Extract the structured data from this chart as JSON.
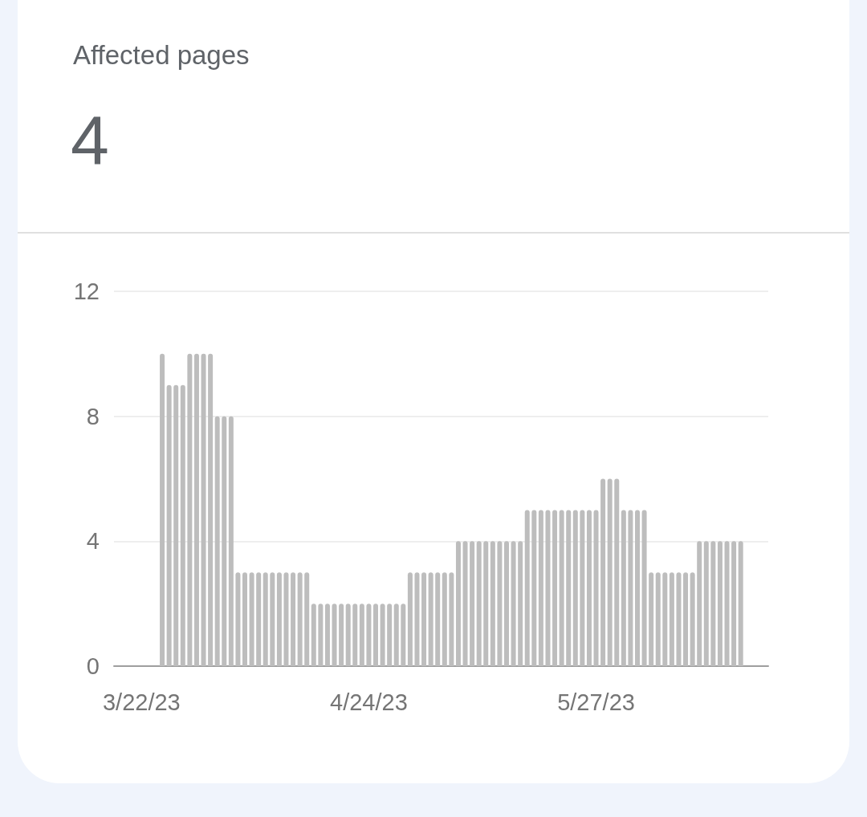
{
  "chart_data": {
    "type": "bar",
    "title": "Affected pages",
    "subtitle": "4",
    "x": [
      "2023-03-25",
      "2023-03-26",
      "2023-03-27",
      "2023-03-28",
      "2023-03-29",
      "2023-03-30",
      "2023-03-31",
      "2023-04-01",
      "2023-04-02",
      "2023-04-03",
      "2023-04-04",
      "2023-04-05",
      "2023-04-06",
      "2023-04-07",
      "2023-04-08",
      "2023-04-09",
      "2023-04-10",
      "2023-04-11",
      "2023-04-12",
      "2023-04-13",
      "2023-04-14",
      "2023-04-15",
      "2023-04-16",
      "2023-04-17",
      "2023-04-18",
      "2023-04-19",
      "2023-04-20",
      "2023-04-21",
      "2023-04-22",
      "2023-04-23",
      "2023-04-24",
      "2023-04-25",
      "2023-04-26",
      "2023-04-27",
      "2023-04-28",
      "2023-04-29",
      "2023-04-30",
      "2023-05-01",
      "2023-05-02",
      "2023-05-03",
      "2023-05-04",
      "2023-05-05",
      "2023-05-06",
      "2023-05-07",
      "2023-05-08",
      "2023-05-09",
      "2023-05-10",
      "2023-05-11",
      "2023-05-12",
      "2023-05-13",
      "2023-05-14",
      "2023-05-15",
      "2023-05-16",
      "2023-05-17",
      "2023-05-18",
      "2023-05-19",
      "2023-05-20",
      "2023-05-21",
      "2023-05-22",
      "2023-05-23",
      "2023-05-24",
      "2023-05-25",
      "2023-05-26",
      "2023-05-27",
      "2023-05-28",
      "2023-05-29",
      "2023-05-30",
      "2023-05-31",
      "2023-06-01",
      "2023-06-02",
      "2023-06-03",
      "2023-06-04",
      "2023-06-05",
      "2023-06-06",
      "2023-06-07",
      "2023-06-08",
      "2023-06-09",
      "2023-06-10",
      "2023-06-11",
      "2023-06-12",
      "2023-06-13",
      "2023-06-14",
      "2023-06-15",
      "2023-06-16",
      "2023-06-17"
    ],
    "values": [
      10,
      9,
      9,
      9,
      10,
      10,
      10,
      10,
      8,
      8,
      8,
      3,
      3,
      3,
      3,
      3,
      3,
      3,
      3,
      3,
      3,
      3,
      2,
      2,
      2,
      2,
      2,
      2,
      2,
      2,
      2,
      2,
      2,
      2,
      2,
      2,
      3,
      3,
      3,
      3,
      3,
      3,
      3,
      4,
      4,
      4,
      4,
      4,
      4,
      4,
      4,
      4,
      4,
      5,
      5,
      5,
      5,
      5,
      5,
      5,
      5,
      5,
      5,
      5,
      6,
      6,
      6,
      5,
      5,
      5,
      5,
      3,
      3,
      3,
      3,
      3,
      3,
      3,
      4,
      4,
      4,
      4,
      4,
      4,
      4
    ],
    "color": "#bdbdbd",
    "xlim": [
      "2023-03-18",
      "2023-06-21"
    ],
    "xticks": [
      {
        "value": "2023-03-22",
        "label": "3/22/23"
      },
      {
        "value": "2023-04-24",
        "label": "4/24/23"
      },
      {
        "value": "2023-05-27",
        "label": "5/27/23"
      }
    ],
    "ylim": [
      0,
      12
    ],
    "yticks": [
      0,
      4,
      8,
      12
    ],
    "grid": "y"
  }
}
